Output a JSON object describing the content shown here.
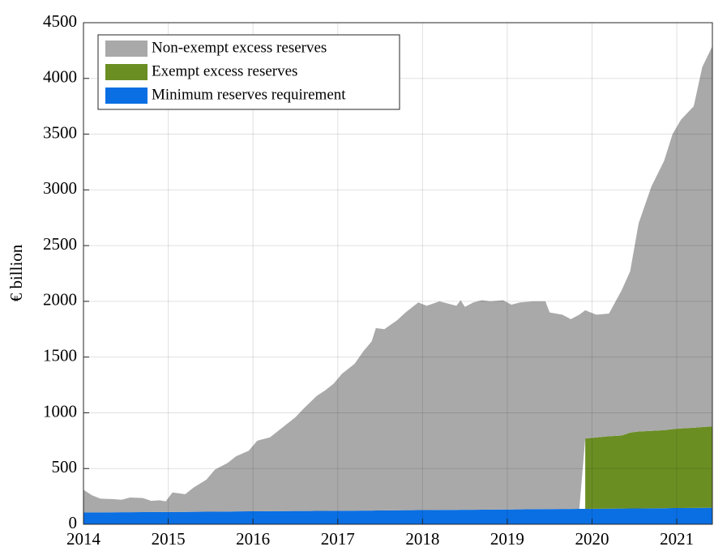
{
  "chart_data": {
    "type": "stacked_area",
    "ylabel": "€ billion",
    "x": [
      2014.0,
      2014.1,
      2014.2,
      2014.35,
      2014.45,
      2014.55,
      2014.7,
      2014.8,
      2014.9,
      2014.97,
      2015.05,
      2015.2,
      2015.3,
      2015.45,
      2015.55,
      2015.7,
      2015.8,
      2015.95,
      2016.05,
      2016.2,
      2016.35,
      2016.5,
      2016.6,
      2016.75,
      2016.85,
      2016.95,
      2017.05,
      2017.2,
      2017.3,
      2017.4,
      2017.45,
      2017.55,
      2017.7,
      2017.8,
      2017.95,
      2018.05,
      2018.2,
      2018.3,
      2018.4,
      2018.45,
      2018.5,
      2018.6,
      2018.7,
      2018.8,
      2018.95,
      2019.05,
      2019.15,
      2019.3,
      2019.45,
      2019.5,
      2019.65,
      2019.75,
      2019.85,
      2019.92,
      2020.05,
      2020.2,
      2020.35,
      2020.45,
      2020.55,
      2020.7,
      2020.85,
      2020.95,
      2021.05,
      2021.2,
      2021.3,
      2021.42
    ],
    "series": [
      {
        "name": "Non-exempt excess reserves",
        "color": "#a9a9a9",
        "values": [
          205,
          154,
          124,
          118,
          112,
          132,
          126,
          100,
          105,
          95,
          175,
          159,
          218,
          287,
          377,
          436,
          495,
          544,
          634,
          663,
          752,
          841,
          921,
          1030,
          1080,
          1139,
          1229,
          1318,
          1427,
          1517,
          1636,
          1626,
          1705,
          1774,
          1863,
          1833,
          1872,
          1851,
          1831,
          1880,
          1820,
          1860,
          1879,
          1868,
          1877,
          1837,
          1856,
          1865,
          1864,
          1764,
          1743,
          1703,
          1742,
          1150,
          1101,
          1100,
          1304,
          1448,
          1868,
          2192,
          2416,
          2647,
          2770,
          2884,
          3228,
          3412
        ]
      },
      {
        "name": "Exempt excess reserves",
        "color": "#6b8e23",
        "values": [
          null,
          null,
          null,
          null,
          null,
          null,
          null,
          null,
          null,
          null,
          null,
          null,
          null,
          null,
          null,
          null,
          null,
          null,
          null,
          null,
          null,
          null,
          null,
          null,
          null,
          null,
          null,
          null,
          null,
          null,
          null,
          null,
          null,
          null,
          null,
          null,
          null,
          null,
          null,
          null,
          null,
          null,
          null,
          null,
          null,
          null,
          null,
          null,
          null,
          null,
          null,
          null,
          null,
          632,
          640,
          650,
          655,
          680,
          690,
          695,
          700,
          708,
          715,
          720,
          725,
          730
        ]
      },
      {
        "name": "Minimum reserves requirement",
        "color": "#0a6fe3",
        "values": [
          105,
          106,
          106,
          107,
          108,
          108,
          109,
          110,
          110,
          110,
          110,
          111,
          112,
          113,
          113,
          114,
          115,
          116,
          116,
          117,
          118,
          119,
          119,
          120,
          120,
          121,
          121,
          122,
          123,
          123,
          124,
          124,
          125,
          126,
          127,
          127,
          128,
          129,
          129,
          130,
          130,
          130,
          131,
          132,
          133,
          133,
          134,
          135,
          136,
          136,
          137,
          137,
          138,
          138,
          139,
          140,
          141,
          142,
          142,
          143,
          144,
          145,
          145,
          146,
          147,
          148
        ]
      }
    ],
    "xlim": [
      2014,
      2021.42
    ],
    "xticks": [
      2014,
      2015,
      2016,
      2017,
      2018,
      2019,
      2020,
      2021
    ],
    "ylim": [
      0,
      4500
    ],
    "yticks": [
      0,
      500,
      1000,
      1500,
      2000,
      2500,
      3000,
      3500,
      4000,
      4500
    ],
    "grid": true,
    "legend": "upper left"
  }
}
